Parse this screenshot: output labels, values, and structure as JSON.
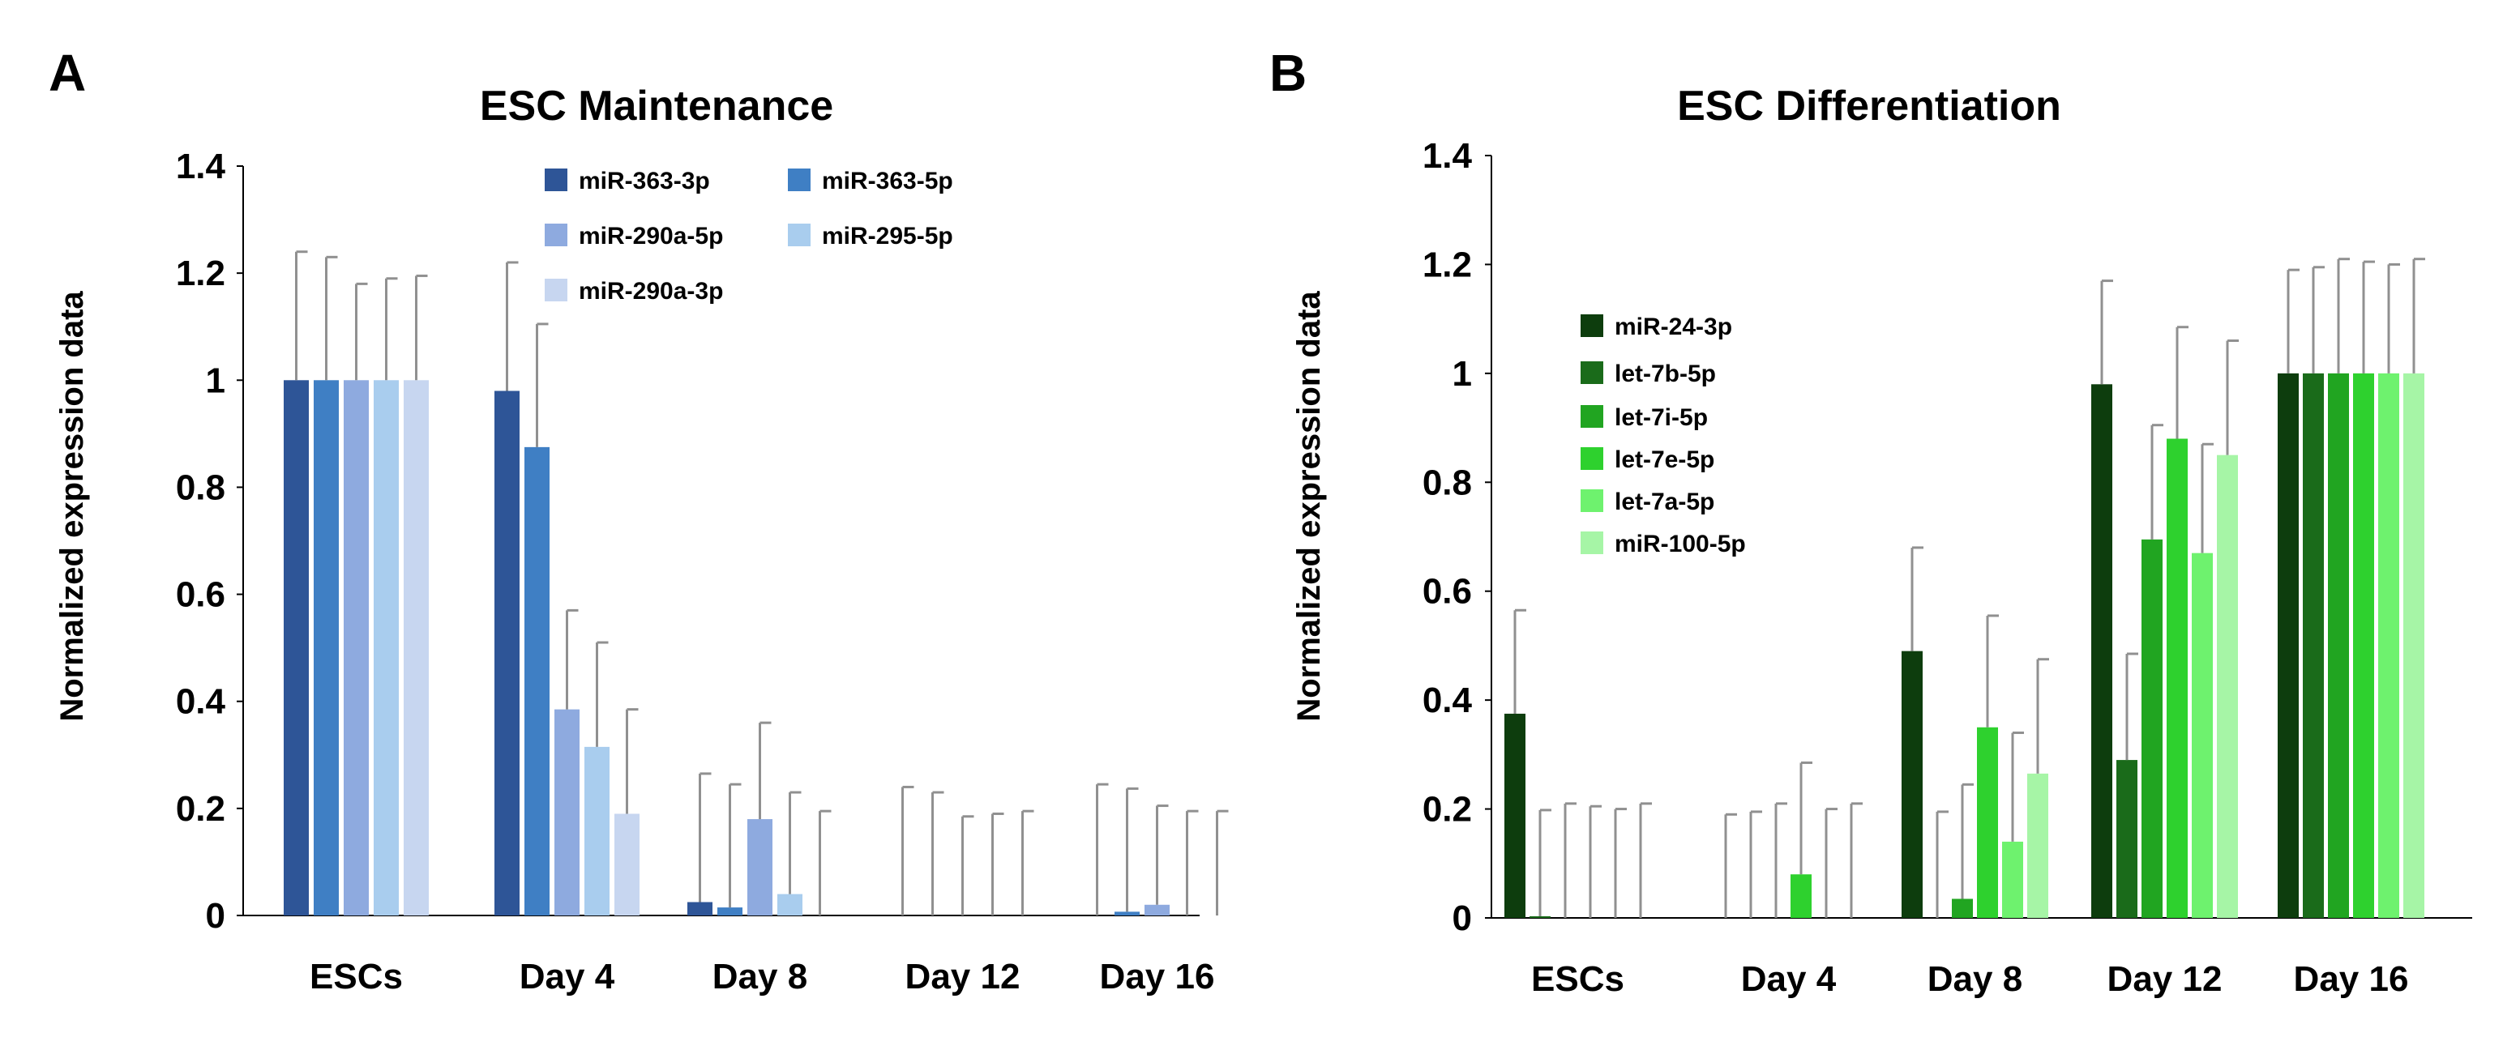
{
  "chart_data": [
    {
      "panel": "A",
      "type": "bar",
      "title": "ESC Maintenance",
      "xlabel": "",
      "ylabel": "Normalized expression data",
      "ylim": [
        0,
        1.4
      ],
      "yticks": [
        "0",
        "0.2",
        "0.4",
        "0.6",
        "0.8",
        "1",
        "1.2",
        "1.4"
      ],
      "categories": [
        "ESCs",
        "Day 4",
        "Day 8",
        "Day 12",
        "Day 16"
      ],
      "legend_position": "top-right",
      "series": [
        {
          "name": "miR-363-3p",
          "color": "#2e5597",
          "values": [
            1.0,
            0.98,
            0.025,
            0.0,
            0.0
          ],
          "errors": [
            0.24,
            0.24,
            0.24,
            0.24,
            0.245
          ]
        },
        {
          "name": "miR-363-5p",
          "color": "#3f7fc4",
          "values": [
            1.0,
            0.875,
            0.015,
            0.0,
            0.007
          ],
          "errors": [
            0.23,
            0.23,
            0.23,
            0.23,
            0.23
          ]
        },
        {
          "name": "miR-290a-5p",
          "color": "#8eaadf",
          "values": [
            1.0,
            0.385,
            0.18,
            0.0,
            0.02
          ],
          "errors": [
            0.18,
            0.185,
            0.18,
            0.185,
            0.185
          ]
        },
        {
          "name": "miR-295-5p",
          "color": "#a9cdee",
          "values": [
            1.0,
            0.315,
            0.04,
            0.0,
            0.0
          ],
          "errors": [
            0.19,
            0.195,
            0.19,
            0.19,
            0.195
          ]
        },
        {
          "name": "miR-290a-3p",
          "color": "#c7d6f0",
          "values": [
            1.0,
            0.19,
            0.0,
            0.0,
            0.0
          ],
          "errors": [
            0.195,
            0.195,
            0.195,
            0.195,
            0.195
          ]
        }
      ]
    },
    {
      "panel": "B",
      "type": "bar",
      "title": "ESC Differentiation",
      "xlabel": "",
      "ylabel": "Normalized expression data",
      "ylim": [
        0,
        1.4
      ],
      "yticks": [
        "0",
        "0.2",
        "0.4",
        "0.6",
        "0.8",
        "1",
        "1.2",
        "1.4"
      ],
      "categories": [
        "ESCs",
        "Day 4",
        "Day 8",
        "Day 12",
        "Day 16"
      ],
      "legend_position": "top-left",
      "series": [
        {
          "name": "miR-24-3p",
          "color": "#0d3d0d",
          "values": [
            0.375,
            0.0,
            0.49,
            0.98,
            1.0
          ],
          "errors": [
            0.19,
            0.19,
            0.19,
            0.19,
            0.19
          ]
        },
        {
          "name": "let-7b-5p",
          "color": "#1a6b1a",
          "values": [
            0.003,
            0.0,
            0.0,
            0.29,
            1.0
          ],
          "errors": [
            0.195,
            0.195,
            0.195,
            0.195,
            0.195
          ]
        },
        {
          "name": "let-7i-5p",
          "color": "#21a521",
          "values": [
            0.0,
            0.0,
            0.035,
            0.695,
            1.0
          ],
          "errors": [
            0.21,
            0.21,
            0.21,
            0.21,
            0.21
          ]
        },
        {
          "name": "let-7e-5p",
          "color": "#2ed12e",
          "values": [
            0.0,
            0.08,
            0.35,
            0.88,
            1.0
          ],
          "errors": [
            0.205,
            0.205,
            0.205,
            0.205,
            0.205
          ]
        },
        {
          "name": "let-7a-5p",
          "color": "#6ef26e",
          "values": [
            0.0,
            0.0,
            0.14,
            0.67,
            1.0
          ],
          "errors": [
            0.2,
            0.2,
            0.2,
            0.2,
            0.2
          ]
        },
        {
          "name": "miR-100-5p",
          "color": "#a6f5a6",
          "values": [
            0.0,
            0.0,
            0.265,
            0.85,
            1.0
          ],
          "errors": [
            0.21,
            0.21,
            0.21,
            0.21,
            0.21
          ]
        }
      ]
    }
  ]
}
